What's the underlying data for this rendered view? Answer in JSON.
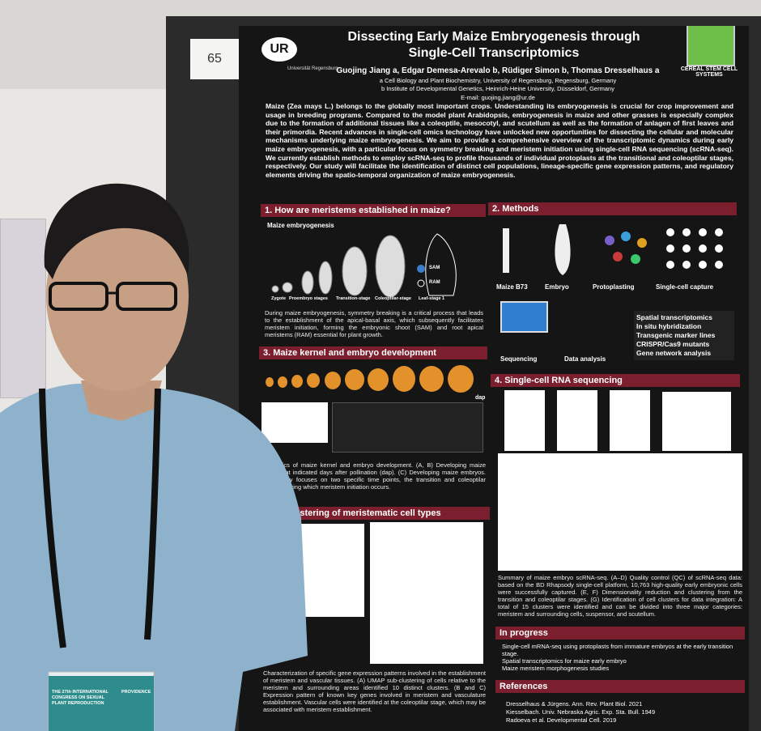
{
  "board_number": "65",
  "poster": {
    "title": "Dissecting Early Maize Embryogenesis through Single-Cell Transcriptomics",
    "university": "Universität Regensburg",
    "logo_text": "CEREAL STEM CELL SYSTEMS",
    "authors": "Guojing Jiang a, Edgar Demesa-Arevalo b, Rüdiger Simon b, Thomas Dresselhaus a",
    "affiliations": [
      "a Cell Biology and Plant Biochemistry, University of Regensburg, Regensburg, Germany",
      "b Institute of Developmental Genetics, Heinrich-Heine University, Düsseldorf, Germany"
    ],
    "email": "E-mail: guojing.jiang@ur.de",
    "intro": "Maize (Zea mays L.) belongs to the globally most important crops. Understanding its embryogenesis is crucial for crop improvement and usage in breeding programs. Compared to the model plant Arabidopsis, embryogenesis in maize and other grasses is especially complex due to the formation of additional tissues like a coleoptile, mesocotyl, and scutellum as well as the formation of anlagen of first leaves and their primordia. Recent advances in single-cell omics technology have unlocked new opportunities for dissecting the cellular and molecular mechanisms underlying maize embryogenesis. We aim to provide a comprehensive overview of the transcriptomic dynamics during early maize embryogenesis, with a particular focus on symmetry breaking and meristem initiation using single-cell RNA sequencing (scRNA-seq). We currently establish methods to employ scRNA-seq to profile thousands of individual protoplasts at the transitional and coleoptilar stages, respectively. Our study will facilitate the identification of distinct cell populations, lineage-specific gene expression patterns, and regulatory elements driving the spatio-temporal organization of maize embryogenesis.",
    "section1": {
      "heading": "1. How are meristems established in maize?",
      "label": "Maize embryogenesis",
      "stages": [
        "Zygote",
        "Proembryo stages",
        "Transition-stage",
        "Coleoptilar-stage",
        "Leaf-stage 1"
      ],
      "markers": [
        "SAM",
        "RAM"
      ],
      "caption": "During maize embryogenesis, symmetry breaking is a critical process that leads to the establishment of the apical-basal axis, which subsequently facilitates meristem initiation, forming the embryonic shoot (SAM) and root apical meristems (RAM) essential for plant growth."
    },
    "section2": {
      "heading": "2. Methods",
      "steps": [
        "Maize B73",
        "Embryo",
        "Protoplasting",
        "Single-cell capture",
        "Sequencing",
        "Data analysis"
      ],
      "list": [
        "Spatial transcriptomics",
        "In situ hybridization",
        "Transgenic marker lines",
        "CRISPR/Cas9 mutants",
        "Gene network analysis"
      ]
    },
    "section3": {
      "heading": "3. Maize kernel and embryo development",
      "unit": "dap",
      "caption": "Dynamics of maize kernel and embryo development. (A, B) Developing maize kernels at indicated days after pollination (dap). (C) Developing maize embryos. This study focuses on two specific time points, the transition and coleoptilar stages, during which meristem initiation occurs."
    },
    "section4": {
      "heading": "4. Single-cell RNA sequencing",
      "caption": "Summary of maize embryo scRNA-seq. (A–D) Quality control (QC) of scRNA-seq data: based on the BD Rhapsody single-cell platform, 10,763 high-quality early embryonic cells were successfully captured. (E, F) Dimensionality reduction and clustering from the transition and coleoptilar stages. (G) Identification of cell clusters for data integration: A total of 15 clusters were identified and can be divided into three major categories: meristem and surrounding cells, suspensor, and scutellum."
    },
    "section5": {
      "heading": "Sub-clustering of meristematic cell types",
      "caption": "Characterization of specific gene expression patterns involved in the establishment of meristem and vascular tissues. (A) UMAP sub-clustering of cells relative to the meristem and surrounding areas identified 10 distinct clusters. (B and C) Expression pattern of known key genes involved in meristem and vasculature establishment. Vascular cells were identified at the coleoptilar stage, which may be associated with meristem establishment."
    },
    "in_progress": {
      "heading": "In progress",
      "items": [
        "Single-cell mRNA-seq using protoplasts from immature embryos at the early transition stage.",
        "Spatial transcriptomics for maize early embryo",
        "Maize meristem morphogenesis studies"
      ]
    },
    "references": {
      "heading": "References",
      "items": [
        "Dresselhaus & Jürgens. Ann. Rev. Plant Biol. 2021",
        "Kiesselbach. Univ. Nebraska Agric. Exp. Sta. Bull. 1949",
        "Radoeva et al. Developmental Cell. 2019"
      ]
    }
  },
  "badge": {
    "text": "THE 27th INTERNATIONAL CONGRESS ON SEXUAL PLANT REPRODUCTION",
    "place": "PROVIDENCE"
  }
}
